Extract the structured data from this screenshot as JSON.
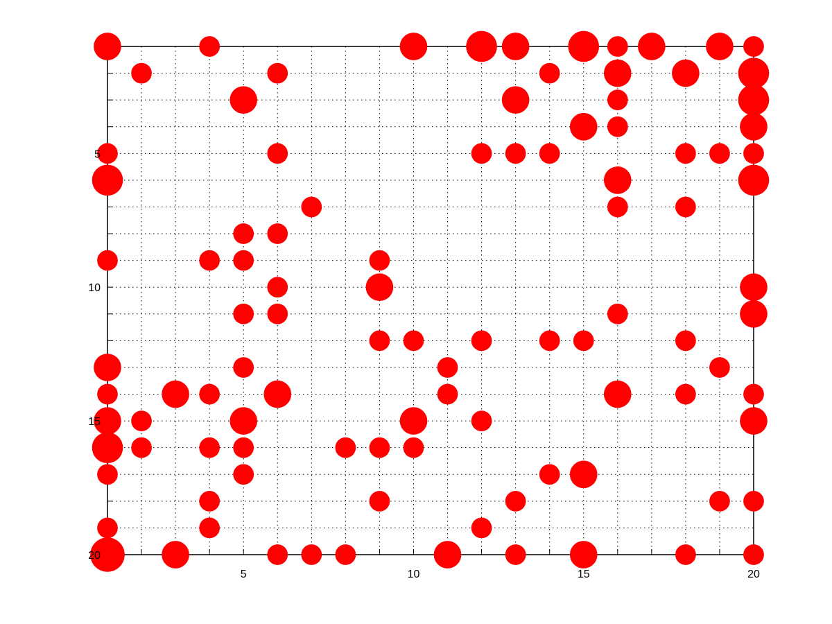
{
  "chart_data": {
    "type": "scatter",
    "title": "",
    "xlabel": "",
    "ylabel": "",
    "xlim": [
      1,
      20
    ],
    "ylim": [
      1,
      20
    ],
    "y_axis_inverted": true,
    "grid": true,
    "grid_style": "dotted",
    "marker": "filled-circle",
    "marker_color": "#ff0000",
    "x_ticks": [
      5,
      10,
      15,
      20
    ],
    "y_ticks": [
      5,
      10,
      15,
      20
    ],
    "legend": "none",
    "points": [
      {
        "x": 1,
        "y": 1,
        "size": 0.8
      },
      {
        "x": 4,
        "y": 1,
        "size": 0.6
      },
      {
        "x": 10,
        "y": 1,
        "size": 0.8
      },
      {
        "x": 12,
        "y": 1,
        "size": 0.9
      },
      {
        "x": 13,
        "y": 1,
        "size": 0.8
      },
      {
        "x": 15,
        "y": 1,
        "size": 0.9
      },
      {
        "x": 16,
        "y": 1,
        "size": 0.6
      },
      {
        "x": 17,
        "y": 1,
        "size": 0.8
      },
      {
        "x": 19,
        "y": 1,
        "size": 0.8
      },
      {
        "x": 20,
        "y": 1,
        "size": 0.6
      },
      {
        "x": 2,
        "y": 2,
        "size": 0.6
      },
      {
        "x": 6,
        "y": 2,
        "size": 0.6
      },
      {
        "x": 14,
        "y": 2,
        "size": 0.6
      },
      {
        "x": 16,
        "y": 2,
        "size": 0.8
      },
      {
        "x": 18,
        "y": 2,
        "size": 0.8
      },
      {
        "x": 20,
        "y": 2,
        "size": 0.9
      },
      {
        "x": 5,
        "y": 3,
        "size": 0.8
      },
      {
        "x": 13,
        "y": 3,
        "size": 0.8
      },
      {
        "x": 16,
        "y": 3,
        "size": 0.6
      },
      {
        "x": 20,
        "y": 3,
        "size": 0.9
      },
      {
        "x": 15,
        "y": 4,
        "size": 0.8
      },
      {
        "x": 16,
        "y": 4,
        "size": 0.6
      },
      {
        "x": 20,
        "y": 4,
        "size": 0.8
      },
      {
        "x": 1,
        "y": 5,
        "size": 0.6
      },
      {
        "x": 6,
        "y": 5,
        "size": 0.6
      },
      {
        "x": 12,
        "y": 5,
        "size": 0.6
      },
      {
        "x": 13,
        "y": 5,
        "size": 0.6
      },
      {
        "x": 14,
        "y": 5,
        "size": 0.6
      },
      {
        "x": 18,
        "y": 5,
        "size": 0.6
      },
      {
        "x": 19,
        "y": 5,
        "size": 0.6
      },
      {
        "x": 20,
        "y": 5,
        "size": 0.6
      },
      {
        "x": 1,
        "y": 6,
        "size": 0.9
      },
      {
        "x": 16,
        "y": 6,
        "size": 0.8
      },
      {
        "x": 20,
        "y": 6,
        "size": 0.9
      },
      {
        "x": 7,
        "y": 7,
        "size": 0.6
      },
      {
        "x": 16,
        "y": 7,
        "size": 0.6
      },
      {
        "x": 18,
        "y": 7,
        "size": 0.6
      },
      {
        "x": 5,
        "y": 8,
        "size": 0.6
      },
      {
        "x": 6,
        "y": 8,
        "size": 0.6
      },
      {
        "x": 1,
        "y": 9,
        "size": 0.6
      },
      {
        "x": 4,
        "y": 9,
        "size": 0.6
      },
      {
        "x": 5,
        "y": 9,
        "size": 0.6
      },
      {
        "x": 9,
        "y": 9,
        "size": 0.6
      },
      {
        "x": 6,
        "y": 10,
        "size": 0.6
      },
      {
        "x": 9,
        "y": 10,
        "size": 0.8
      },
      {
        "x": 20,
        "y": 10,
        "size": 0.8
      },
      {
        "x": 5,
        "y": 11,
        "size": 0.6
      },
      {
        "x": 6,
        "y": 11,
        "size": 0.6
      },
      {
        "x": 16,
        "y": 11,
        "size": 0.6
      },
      {
        "x": 20,
        "y": 11,
        "size": 0.8
      },
      {
        "x": 9,
        "y": 12,
        "size": 0.6
      },
      {
        "x": 10,
        "y": 12,
        "size": 0.6
      },
      {
        "x": 12,
        "y": 12,
        "size": 0.6
      },
      {
        "x": 14,
        "y": 12,
        "size": 0.6
      },
      {
        "x": 15,
        "y": 12,
        "size": 0.6
      },
      {
        "x": 18,
        "y": 12,
        "size": 0.6
      },
      {
        "x": 1,
        "y": 13,
        "size": 0.8
      },
      {
        "x": 5,
        "y": 13,
        "size": 0.6
      },
      {
        "x": 11,
        "y": 13,
        "size": 0.6
      },
      {
        "x": 19,
        "y": 13,
        "size": 0.6
      },
      {
        "x": 1,
        "y": 14,
        "size": 0.6
      },
      {
        "x": 3,
        "y": 14,
        "size": 0.8
      },
      {
        "x": 4,
        "y": 14,
        "size": 0.6
      },
      {
        "x": 6,
        "y": 14,
        "size": 0.8
      },
      {
        "x": 11,
        "y": 14,
        "size": 0.6
      },
      {
        "x": 16,
        "y": 14,
        "size": 0.8
      },
      {
        "x": 18,
        "y": 14,
        "size": 0.6
      },
      {
        "x": 20,
        "y": 14,
        "size": 0.6
      },
      {
        "x": 1,
        "y": 15,
        "size": 0.8
      },
      {
        "x": 2,
        "y": 15,
        "size": 0.6
      },
      {
        "x": 5,
        "y": 15,
        "size": 0.8
      },
      {
        "x": 10,
        "y": 15,
        "size": 0.8
      },
      {
        "x": 12,
        "y": 15,
        "size": 0.6
      },
      {
        "x": 20,
        "y": 15,
        "size": 0.8
      },
      {
        "x": 1,
        "y": 16,
        "size": 0.9
      },
      {
        "x": 2,
        "y": 16,
        "size": 0.6
      },
      {
        "x": 4,
        "y": 16,
        "size": 0.6
      },
      {
        "x": 5,
        "y": 16,
        "size": 0.6
      },
      {
        "x": 8,
        "y": 16,
        "size": 0.6
      },
      {
        "x": 9,
        "y": 16,
        "size": 0.6
      },
      {
        "x": 10,
        "y": 16,
        "size": 0.6
      },
      {
        "x": 1,
        "y": 17,
        "size": 0.6
      },
      {
        "x": 5,
        "y": 17,
        "size": 0.6
      },
      {
        "x": 14,
        "y": 17,
        "size": 0.6
      },
      {
        "x": 15,
        "y": 17,
        "size": 0.8
      },
      {
        "x": 4,
        "y": 18,
        "size": 0.6
      },
      {
        "x": 9,
        "y": 18,
        "size": 0.6
      },
      {
        "x": 13,
        "y": 18,
        "size": 0.6
      },
      {
        "x": 19,
        "y": 18,
        "size": 0.6
      },
      {
        "x": 20,
        "y": 18,
        "size": 0.6
      },
      {
        "x": 1,
        "y": 19,
        "size": 0.6
      },
      {
        "x": 4,
        "y": 19,
        "size": 0.6
      },
      {
        "x": 12,
        "y": 19,
        "size": 0.6
      },
      {
        "x": 1,
        "y": 20,
        "size": 1.0
      },
      {
        "x": 3,
        "y": 20,
        "size": 0.8
      },
      {
        "x": 6,
        "y": 20,
        "size": 0.6
      },
      {
        "x": 7,
        "y": 20,
        "size": 0.6
      },
      {
        "x": 8,
        "y": 20,
        "size": 0.6
      },
      {
        "x": 11,
        "y": 20,
        "size": 0.8
      },
      {
        "x": 13,
        "y": 20,
        "size": 0.6
      },
      {
        "x": 15,
        "y": 20,
        "size": 0.8
      },
      {
        "x": 18,
        "y": 20,
        "size": 0.6
      },
      {
        "x": 20,
        "y": 20,
        "size": 0.6
      }
    ]
  }
}
